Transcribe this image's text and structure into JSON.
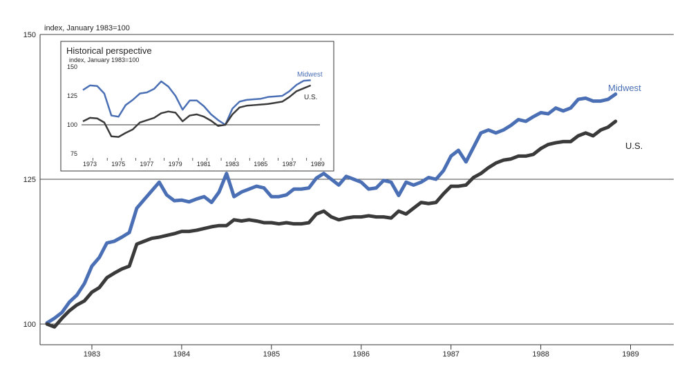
{
  "chart_data": [
    {
      "type": "line",
      "title": "",
      "note": "index, January 1983=100",
      "ylim": [
        100,
        150
      ],
      "y_ticks": [
        "100",
        "125",
        "150"
      ],
      "gridlines_at": [
        100,
        125,
        150
      ],
      "x_ticks": [
        "1983",
        "1984",
        "1985",
        "1986",
        "1987",
        "1988",
        "1989"
      ],
      "xlim": [
        1983.0,
        1989.75
      ],
      "series": [
        {
          "name": "Midwest",
          "color": "#4a6fb5",
          "x": [
            1983.0,
            1983.083,
            1983.167,
            1983.25,
            1983.333,
            1983.417,
            1983.5,
            1983.583,
            1983.667,
            1983.75,
            1983.833,
            1983.917,
            1984.0,
            1984.083,
            1984.167,
            1984.25,
            1984.333,
            1984.417,
            1984.5,
            1984.583,
            1984.667,
            1984.75,
            1984.833,
            1984.917,
            1985.0,
            1985.083,
            1985.167,
            1985.25,
            1985.333,
            1985.417,
            1985.5,
            1985.583,
            1985.667,
            1985.75,
            1985.833,
            1985.917,
            1986.0,
            1986.083,
            1986.167,
            1986.25,
            1986.333,
            1986.417,
            1986.5,
            1986.583,
            1986.667,
            1986.75,
            1986.833,
            1986.917,
            1987.0,
            1987.083,
            1987.167,
            1987.25,
            1987.333,
            1987.417,
            1987.5,
            1987.583,
            1987.667,
            1987.75,
            1987.833,
            1987.917,
            1988.0,
            1988.083,
            1988.167,
            1988.25,
            1988.333,
            1988.417,
            1988.5,
            1988.583,
            1988.667,
            1988.75,
            1988.833,
            1988.917,
            1989.0,
            1989.083,
            1989.167,
            1989.25,
            1989.333
          ],
          "values": [
            100.2,
            101.0,
            102.0,
            103.8,
            105.0,
            107.0,
            110.0,
            111.5,
            114.0,
            114.3,
            115.0,
            115.8,
            120.0,
            121.5,
            123.0,
            124.5,
            122.3,
            121.3,
            121.4,
            121.1,
            121.6,
            122.0,
            121.0,
            122.8,
            126.0,
            122.0,
            122.8,
            123.3,
            123.8,
            123.5,
            122.0,
            122.0,
            122.3,
            123.3,
            123.3,
            123.5,
            125.2,
            126.0,
            125.0,
            124.0,
            125.5,
            125.0,
            124.5,
            123.3,
            123.5,
            124.8,
            124.5,
            122.2,
            124.5,
            124.0,
            124.5,
            125.3,
            125.0,
            126.5,
            129.0,
            130.0,
            128.0,
            130.5,
            133.0,
            133.5,
            133.0,
            133.5,
            134.3,
            135.3,
            135.0,
            135.8,
            136.5,
            136.3,
            137.3,
            136.8,
            137.3,
            138.8,
            139.0,
            138.5,
            138.5,
            138.8,
            139.7
          ]
        },
        {
          "name": "U.S.",
          "color": "#3a3a3a",
          "x": [
            1983.0,
            1983.083,
            1983.167,
            1983.25,
            1983.333,
            1983.417,
            1983.5,
            1983.583,
            1983.667,
            1983.75,
            1983.833,
            1983.917,
            1984.0,
            1984.083,
            1984.167,
            1984.25,
            1984.333,
            1984.417,
            1984.5,
            1984.583,
            1984.667,
            1984.75,
            1984.833,
            1984.917,
            1985.0,
            1985.083,
            1985.167,
            1985.25,
            1985.333,
            1985.417,
            1985.5,
            1985.583,
            1985.667,
            1985.75,
            1985.833,
            1985.917,
            1986.0,
            1986.083,
            1986.167,
            1986.25,
            1986.333,
            1986.417,
            1986.5,
            1986.583,
            1986.667,
            1986.75,
            1986.833,
            1986.917,
            1987.0,
            1987.083,
            1987.167,
            1987.25,
            1987.333,
            1987.417,
            1987.5,
            1987.583,
            1987.667,
            1987.75,
            1987.833,
            1987.917,
            1988.0,
            1988.083,
            1988.167,
            1988.25,
            1988.333,
            1988.417,
            1988.5,
            1988.583,
            1988.667,
            1988.75,
            1988.833,
            1988.917,
            1989.0,
            1989.083,
            1989.167,
            1989.25,
            1989.333
          ],
          "values": [
            100.0,
            99.5,
            101.0,
            102.3,
            103.3,
            104.0,
            105.5,
            106.3,
            108.0,
            108.8,
            109.5,
            110.0,
            113.8,
            114.3,
            114.8,
            115.0,
            115.3,
            115.6,
            116.0,
            116.0,
            116.2,
            116.5,
            116.8,
            117.0,
            117.0,
            118.0,
            117.8,
            118.0,
            117.8,
            117.5,
            117.5,
            117.3,
            117.5,
            117.3,
            117.3,
            117.5,
            119.0,
            119.5,
            118.5,
            118.0,
            118.3,
            118.5,
            118.5,
            118.7,
            118.5,
            118.5,
            118.3,
            119.5,
            119.0,
            120.0,
            121.0,
            120.8,
            121.0,
            122.5,
            123.8,
            123.8,
            124.0,
            125.3,
            126.0,
            127.0,
            127.8,
            128.3,
            128.5,
            129.0,
            129.0,
            129.3,
            130.3,
            131.0,
            131.3,
            131.5,
            131.5,
            132.5,
            133.0,
            132.5,
            133.5,
            134.0,
            135.0
          ]
        }
      ]
    },
    {
      "type": "line",
      "title": "Historical perspective",
      "note": "index, January 1983=100",
      "ylim": [
        75,
        150
      ],
      "y_ticks": [
        "75",
        "100",
        "125",
        "150"
      ],
      "reference_line": 100,
      "x_ticks": [
        "1973",
        "1975",
        "1977",
        "1979",
        "1981",
        "1983",
        "1985",
        "1987",
        "1989"
      ],
      "xlim": [
        1973.0,
        1989.5
      ],
      "series": [
        {
          "name": "Midwest",
          "color": "#4a6fb5",
          "x": [
            1973.0,
            1973.5,
            1974.0,
            1974.5,
            1975.0,
            1975.5,
            1976.0,
            1976.5,
            1977.0,
            1977.5,
            1978.0,
            1978.5,
            1979.0,
            1979.5,
            1980.0,
            1980.5,
            1981.0,
            1981.5,
            1982.0,
            1982.5,
            1983.0,
            1983.5,
            1984.0,
            1984.5,
            1985.0,
            1985.5,
            1986.0,
            1986.5,
            1987.0,
            1987.5,
            1988.0,
            1988.5,
            1989.0
          ],
          "values": [
            130.0,
            134.0,
            133.5,
            127.0,
            108.0,
            107.0,
            117.0,
            121.5,
            127.0,
            128.0,
            131.0,
            137.5,
            133.0,
            125.0,
            113.0,
            121.0,
            121.0,
            116.0,
            109.0,
            104.0,
            100.0,
            114.0,
            120.0,
            121.5,
            122.0,
            122.5,
            124.0,
            124.5,
            125.0,
            129.0,
            134.5,
            138.0,
            138.5
          ]
        },
        {
          "name": "U.S.",
          "color": "#3a3a3a",
          "x": [
            1973.0,
            1973.5,
            1974.0,
            1974.5,
            1975.0,
            1975.5,
            1976.0,
            1976.5,
            1977.0,
            1977.5,
            1978.0,
            1978.5,
            1979.0,
            1979.5,
            1980.0,
            1980.5,
            1981.0,
            1981.5,
            1982.0,
            1982.5,
            1983.0,
            1983.5,
            1984.0,
            1984.5,
            1985.0,
            1985.5,
            1986.0,
            1986.5,
            1987.0,
            1987.5,
            1988.0,
            1988.5,
            1989.0
          ],
          "values": [
            103.0,
            106.0,
            105.5,
            102.0,
            90.0,
            89.5,
            93.0,
            96.0,
            102.0,
            104.0,
            106.0,
            110.0,
            111.5,
            110.5,
            103.0,
            108.0,
            109.0,
            107.0,
            103.5,
            99.0,
            100.0,
            109.0,
            115.0,
            116.5,
            117.0,
            117.5,
            118.0,
            119.0,
            120.0,
            124.0,
            129.0,
            131.5,
            134.0
          ]
        }
      ]
    }
  ]
}
